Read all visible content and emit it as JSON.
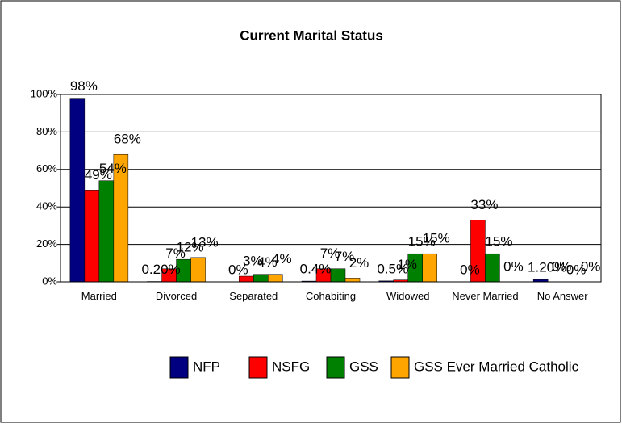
{
  "chart_data": {
    "type": "bar",
    "title": "Current Marital Status",
    "categories": [
      "Married",
      "Divorced",
      "Separated",
      "Cohabiting",
      "Widowed",
      "Never Married",
      "No Answer"
    ],
    "series": [
      {
        "name": "NFP",
        "color": "#000080",
        "values": [
          98,
          0.2,
          0,
          0.4,
          0.5,
          0,
          1.2
        ],
        "value_labels": [
          "98%",
          "0.20%",
          "0%",
          "0.4%",
          "0.5%",
          "0%",
          "1.20%"
        ]
      },
      {
        "name": "NSFG",
        "color": "#ff0000",
        "values": [
          49,
          7,
          3,
          7,
          1,
          33,
          0
        ],
        "value_labels": [
          "49%",
          "7%",
          "3%",
          "7%",
          "1%",
          "33%",
          "0%"
        ]
      },
      {
        "name": "GSS",
        "color": "#008000",
        "values": [
          54,
          12,
          4,
          7,
          15,
          15,
          0
        ],
        "value_labels": [
          "54%",
          "12%",
          "4%",
          "7%",
          "15%",
          "15%",
          "0%"
        ]
      },
      {
        "name": "GSS Ever Married Catholic",
        "color": "#ffa500",
        "values": [
          68,
          13,
          4,
          2,
          15,
          0,
          0
        ],
        "value_labels": [
          "68%",
          "13%",
          "4%",
          "2%",
          "15%",
          "0%",
          "0%"
        ]
      }
    ],
    "ylim": [
      0,
      100
    ],
    "yticks": [
      {
        "value": 0,
        "label": "0%"
      },
      {
        "value": 20,
        "label": "20%"
      },
      {
        "value": 40,
        "label": "40%"
      },
      {
        "value": 60,
        "label": "60%"
      },
      {
        "value": 80,
        "label": "80%"
      },
      {
        "value": 100,
        "label": "100%"
      }
    ],
    "grid": true,
    "legend": "bottom"
  }
}
